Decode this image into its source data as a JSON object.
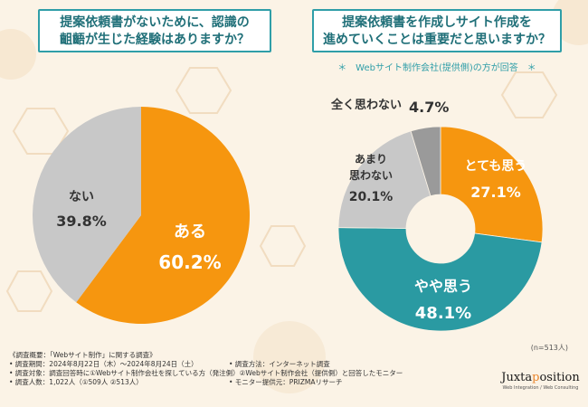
{
  "colors": {
    "orange": "#f6960f",
    "teal": "#2a9aa2",
    "gray_light": "#c8c8c8",
    "gray_dark": "#9a9a9a",
    "title": "#1f6f78"
  },
  "questions": {
    "left_line1": "提案依頼書がないために、認識の",
    "left_line2": "齟齬が生じた経験はありますか？",
    "right_line1": "提案依頼書を作成しサイト作成を",
    "right_line2": "進めていくことは重要だと思いますか？"
  },
  "note": "＊　Webサイト制作会社(提供側)の方が回答　＊",
  "chart_data": [
    {
      "type": "pie",
      "title": "提案依頼書がないために、認識の齟齬が生じた経験はありますか？",
      "slices": [
        {
          "label": "ある",
          "value": 60.2,
          "value_text": "60.2%",
          "color": "#f6960f"
        },
        {
          "label": "ない",
          "value": 39.8,
          "value_text": "39.8%",
          "color": "#c8c8c8"
        }
      ]
    },
    {
      "type": "donut",
      "title": "提案依頼書を作成しサイト作成を進めていくことは重要だと思いますか？",
      "n_label": "(n=513人)",
      "slices": [
        {
          "label": "とても思う",
          "value": 27.1,
          "value_text": "27.1%",
          "color": "#f6960f"
        },
        {
          "label": "やや思う",
          "value": 48.1,
          "value_text": "48.1%",
          "color": "#2a9aa2"
        },
        {
          "label": "あまり思わない",
          "value": 20.1,
          "value_text": "20.1%",
          "color": "#c8c8c8"
        },
        {
          "label": "全く思わない",
          "value": 4.7,
          "value_text": "4.7%",
          "color": "#9a9a9a"
        }
      ]
    }
  ],
  "footer": {
    "title": "《調査概要：「Webサイト制作」に関する調査》",
    "period": "• 調査期間：2024年8月22日（木）〜2024年8月24日（土）",
    "method": "• 調査方法：インターネット調査",
    "target": "• 調査対象：調査回答時に①Webサイト制作会社を探している方（発注側）②Webサイト制作会社（提供側）と回答したモニター",
    "count": "• 調査人数：1,022人（①509人 ②513人）",
    "provider": "• モニター提供元：PRIZMAリサーチ"
  },
  "logo": {
    "name_pre": "Juxta",
    "name_accent": "p",
    "name_post": "osition",
    "sub": "Web Integration / Web Consulting"
  }
}
